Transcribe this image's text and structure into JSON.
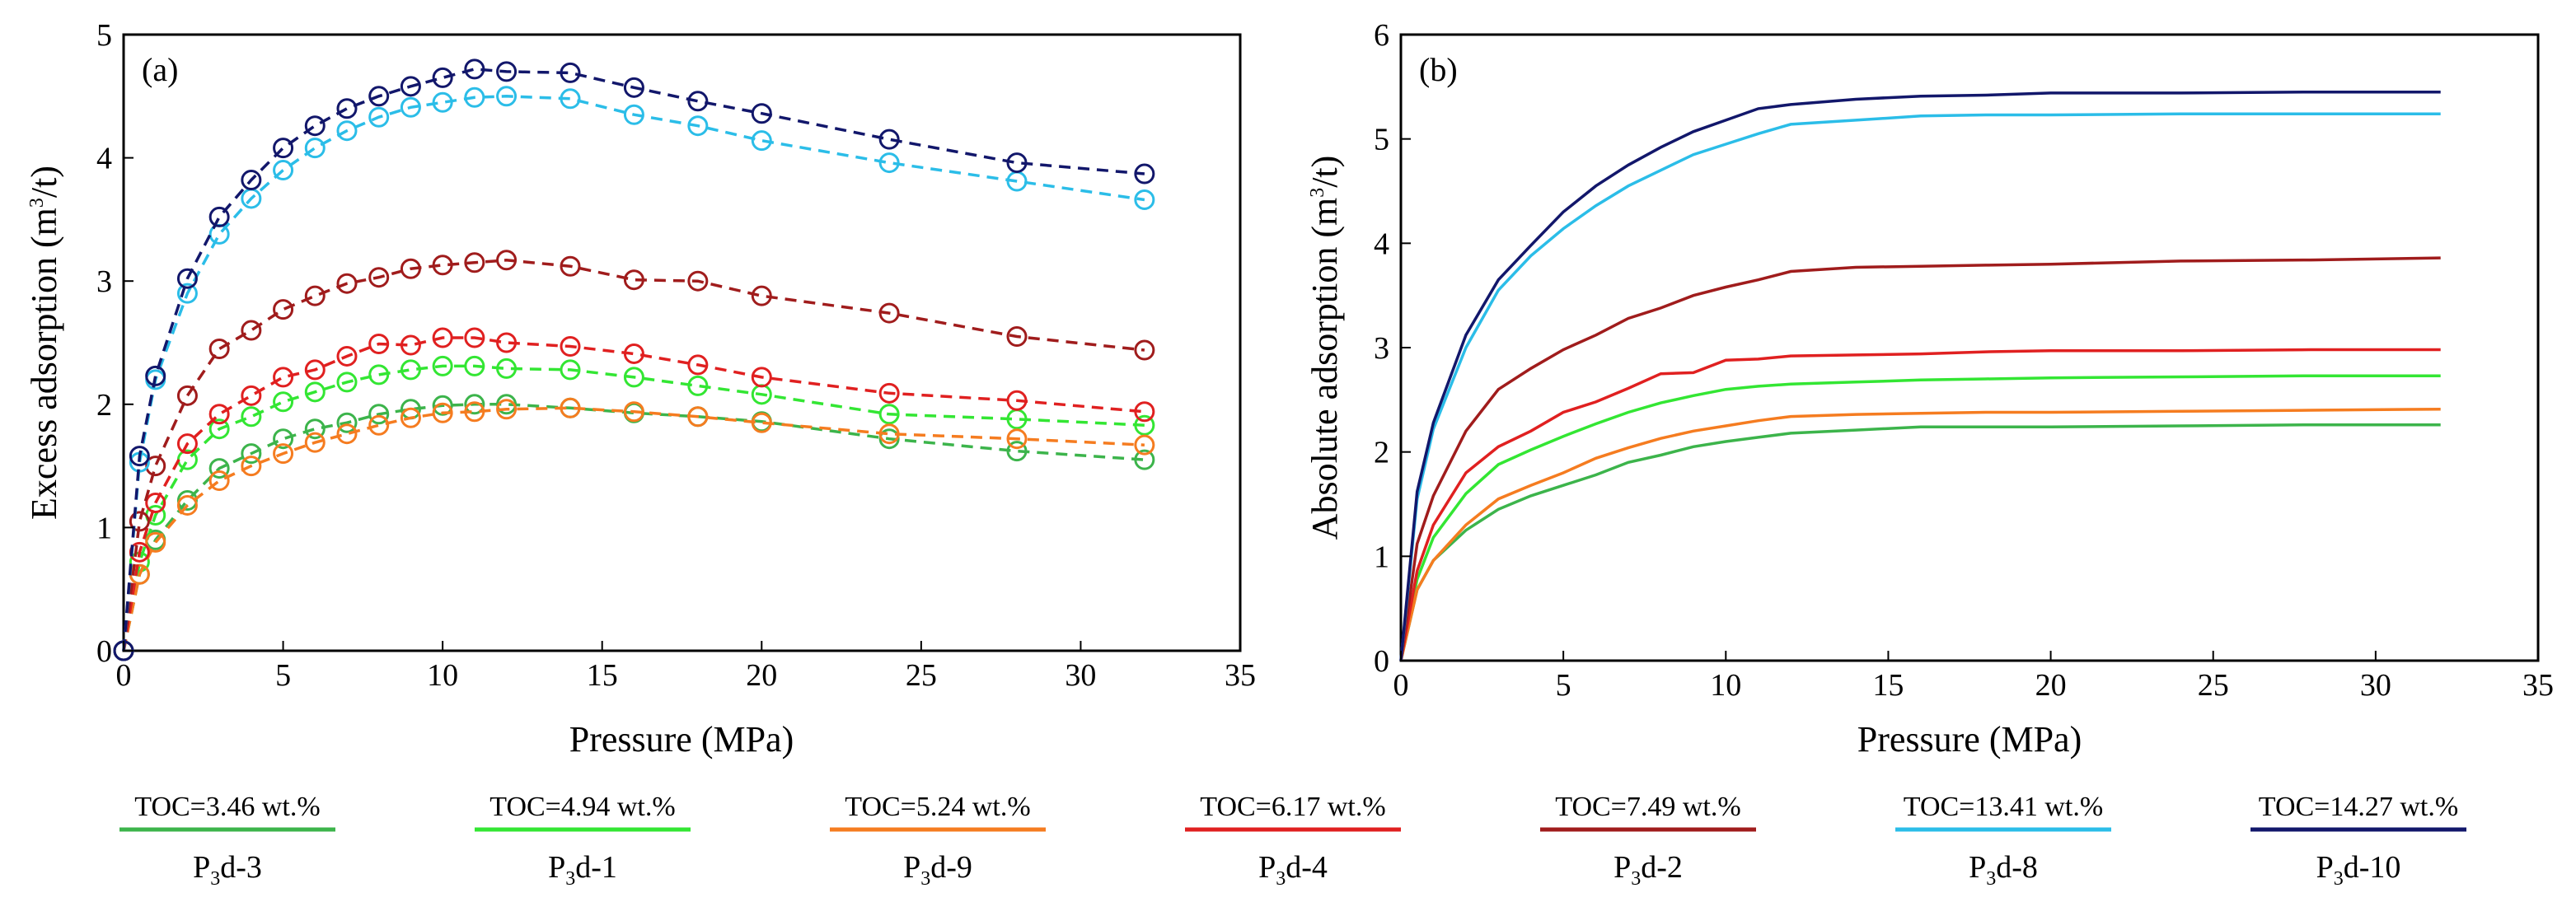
{
  "chart_data": [
    {
      "panel_label": "(a)",
      "type": "line",
      "line_style": "dashed",
      "markers": "open-circle",
      "xlabel": "Pressure (MPa)",
      "ylabel_text": "Excess adsorption (m",
      "ylabel_sup": "3",
      "ylabel_tail": "/t)",
      "xlim": [
        0,
        35
      ],
      "ylim": [
        0,
        5
      ],
      "xticks": [
        "0",
        "5",
        "10",
        "15",
        "20",
        "25",
        "30",
        "35"
      ],
      "yticks": [
        "0",
        "1",
        "2",
        "3",
        "4",
        "5"
      ],
      "x": [
        0,
        0.5,
        1,
        2,
        3,
        4,
        5,
        6,
        7,
        8,
        9,
        10,
        11,
        12,
        14,
        16,
        18,
        20,
        24,
        28,
        32
      ],
      "series": [
        {
          "name": "P3d-3",
          "values": [
            0,
            0.62,
            0.9,
            1.22,
            1.48,
            1.6,
            1.72,
            1.8,
            1.85,
            1.92,
            1.96,
            1.99,
            2.0,
            2.0,
            1.97,
            1.93,
            1.9,
            1.86,
            1.72,
            1.62,
            1.55
          ]
        },
        {
          "name": "P3d-1",
          "values": [
            0,
            0.72,
            1.1,
            1.55,
            1.8,
            1.9,
            2.02,
            2.1,
            2.18,
            2.24,
            2.28,
            2.31,
            2.31,
            2.29,
            2.28,
            2.22,
            2.15,
            2.08,
            1.92,
            1.88,
            1.83
          ]
        },
        {
          "name": "P3d-9",
          "values": [
            0,
            0.62,
            0.88,
            1.18,
            1.38,
            1.5,
            1.6,
            1.69,
            1.76,
            1.83,
            1.89,
            1.93,
            1.94,
            1.96,
            1.97,
            1.94,
            1.9,
            1.85,
            1.76,
            1.72,
            1.67
          ]
        },
        {
          "name": "P3d-4",
          "values": [
            0,
            0.8,
            1.2,
            1.68,
            1.92,
            2.07,
            2.22,
            2.28,
            2.39,
            2.49,
            2.48,
            2.54,
            2.54,
            2.5,
            2.47,
            2.41,
            2.32,
            2.22,
            2.09,
            2.03,
            1.94
          ]
        },
        {
          "name": "P3d-2",
          "values": [
            0,
            1.05,
            1.5,
            2.07,
            2.45,
            2.6,
            2.77,
            2.88,
            2.98,
            3.03,
            3.1,
            3.13,
            3.15,
            3.17,
            3.12,
            3.01,
            3.0,
            2.88,
            2.74,
            2.55,
            2.44
          ]
        },
        {
          "name": "P3d-8",
          "values": [
            0,
            1.53,
            2.2,
            2.9,
            3.38,
            3.67,
            3.9,
            4.08,
            4.22,
            4.33,
            4.41,
            4.45,
            4.49,
            4.5,
            4.48,
            4.35,
            4.26,
            4.14,
            3.96,
            3.81,
            3.66
          ]
        },
        {
          "name": "P3d-10",
          "values": [
            0,
            1.58,
            2.23,
            3.02,
            3.52,
            3.82,
            4.08,
            4.26,
            4.4,
            4.5,
            4.58,
            4.65,
            4.72,
            4.7,
            4.69,
            4.57,
            4.46,
            4.36,
            4.15,
            3.96,
            3.87
          ]
        }
      ]
    },
    {
      "panel_label": "(b)",
      "type": "line",
      "line_style": "solid",
      "xlabel": "Pressure (MPa)",
      "ylabel_text": "Absolute adsorption (m",
      "ylabel_sup": "3",
      "ylabel_tail": "/t)",
      "xlim": [
        0,
        35
      ],
      "ylim": [
        0,
        6
      ],
      "xticks": [
        "0",
        "5",
        "10",
        "15",
        "20",
        "25",
        "30",
        "35"
      ],
      "yticks": [
        "0",
        "1",
        "2",
        "3",
        "4",
        "5",
        "6"
      ],
      "x": [
        0,
        0.5,
        1,
        2,
        3,
        4,
        5,
        6,
        7,
        8,
        9,
        10,
        11,
        12,
        14,
        16,
        18,
        20,
        24,
        28,
        32
      ],
      "series": [
        {
          "name": "P3d-3",
          "values": [
            0,
            0.68,
            0.96,
            1.25,
            1.45,
            1.58,
            1.68,
            1.78,
            1.9,
            1.97,
            2.05,
            2.1,
            2.14,
            2.18,
            2.21,
            2.24,
            2.24,
            2.24,
            2.25,
            2.26,
            2.26
          ]
        },
        {
          "name": "P3d-1",
          "values": [
            0,
            0.78,
            1.18,
            1.6,
            1.88,
            2.02,
            2.15,
            2.27,
            2.38,
            2.47,
            2.54,
            2.6,
            2.63,
            2.65,
            2.67,
            2.69,
            2.7,
            2.71,
            2.72,
            2.73,
            2.73
          ]
        },
        {
          "name": "P3d-9",
          "values": [
            0,
            0.68,
            0.96,
            1.3,
            1.55,
            1.68,
            1.8,
            1.94,
            2.04,
            2.13,
            2.2,
            2.25,
            2.3,
            2.34,
            2.36,
            2.37,
            2.38,
            2.38,
            2.39,
            2.4,
            2.41
          ]
        },
        {
          "name": "P3d-4",
          "values": [
            0,
            0.86,
            1.3,
            1.8,
            2.05,
            2.2,
            2.38,
            2.48,
            2.61,
            2.75,
            2.76,
            2.88,
            2.89,
            2.92,
            2.93,
            2.94,
            2.96,
            2.97,
            2.97,
            2.98,
            2.98
          ]
        },
        {
          "name": "P3d-2",
          "values": [
            0,
            1.12,
            1.58,
            2.2,
            2.6,
            2.8,
            2.98,
            3.12,
            3.28,
            3.38,
            3.5,
            3.58,
            3.65,
            3.73,
            3.77,
            3.78,
            3.79,
            3.8,
            3.83,
            3.84,
            3.86
          ]
        },
        {
          "name": "P3d-8",
          "values": [
            0,
            1.55,
            2.22,
            3.0,
            3.55,
            3.88,
            4.14,
            4.36,
            4.55,
            4.7,
            4.85,
            4.95,
            5.05,
            5.14,
            5.18,
            5.22,
            5.23,
            5.23,
            5.24,
            5.24,
            5.24
          ]
        },
        {
          "name": "P3d-10",
          "values": [
            0,
            1.62,
            2.28,
            3.12,
            3.65,
            3.98,
            4.3,
            4.55,
            4.75,
            4.92,
            5.07,
            5.18,
            5.29,
            5.33,
            5.38,
            5.41,
            5.42,
            5.44,
            5.44,
            5.45,
            5.45
          ]
        }
      ]
    }
  ],
  "legend": [
    {
      "toc": "TOC=3.46 wt.%",
      "name_pre": "P",
      "name_sub": "3",
      "name_post": "d-3",
      "color": "#3cb44b"
    },
    {
      "toc": "TOC=4.94 wt.%",
      "name_pre": "P",
      "name_sub": "3",
      "name_post": "d-1",
      "color": "#33e633"
    },
    {
      "toc": "TOC=5.24 wt.%",
      "name_pre": "P",
      "name_sub": "3",
      "name_post": "d-9",
      "color": "#f57c20"
    },
    {
      "toc": "TOC=6.17 wt.%",
      "name_pre": "P",
      "name_sub": "3",
      "name_post": "d-4",
      "color": "#e02020"
    },
    {
      "toc": "TOC=7.49 wt.%",
      "name_pre": "P",
      "name_sub": "3",
      "name_post": "d-2",
      "color": "#a01c1c"
    },
    {
      "toc": "TOC=13.41 wt.%",
      "name_pre": "P",
      "name_sub": "3",
      "name_post": "d-8",
      "color": "#2bbde8"
    },
    {
      "toc": "TOC=14.27 wt.%",
      "name_pre": "P",
      "name_sub": "3",
      "name_post": "d-10",
      "color": "#12176b"
    }
  ]
}
